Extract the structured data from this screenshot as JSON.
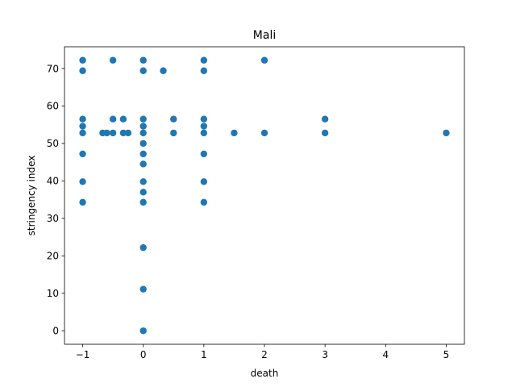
{
  "chart_data": {
    "type": "scatter",
    "title": "Mali",
    "xlabel": "death",
    "ylabel": "stringency index",
    "xlim": [
      -1.3,
      5.3
    ],
    "ylim": [
      -3.6,
      75.8
    ],
    "xticks": [
      -1,
      0,
      1,
      2,
      3,
      4,
      5
    ],
    "xtick_labels": [
      "−1",
      "0",
      "1",
      "2",
      "3",
      "4",
      "5"
    ],
    "yticks": [
      0,
      10,
      20,
      30,
      40,
      50,
      60,
      70
    ],
    "ytick_labels": [
      "0",
      "10",
      "20",
      "30",
      "40",
      "50",
      "60",
      "70"
    ],
    "grid": false,
    "legend": "none",
    "marker_color": "#1f77b4",
    "series": [
      {
        "points": [
          {
            "x": -1,
            "y": 72.2
          },
          {
            "x": -1,
            "y": 69.4
          },
          {
            "x": -1,
            "y": 56.5
          },
          {
            "x": -1,
            "y": 54.6
          },
          {
            "x": -1,
            "y": 52.8
          },
          {
            "x": -1,
            "y": 47.2
          },
          {
            "x": -1,
            "y": 39.8
          },
          {
            "x": -1,
            "y": 34.3
          },
          {
            "x": -0.67,
            "y": 52.8
          },
          {
            "x": -0.6,
            "y": 52.8
          },
          {
            "x": -0.5,
            "y": 72.2
          },
          {
            "x": -0.5,
            "y": 56.5
          },
          {
            "x": -0.5,
            "y": 52.8
          },
          {
            "x": -0.33,
            "y": 56.5
          },
          {
            "x": -0.33,
            "y": 52.8
          },
          {
            "x": -0.25,
            "y": 52.8
          },
          {
            "x": 0,
            "y": 72.2
          },
          {
            "x": 0,
            "y": 69.4
          },
          {
            "x": 0,
            "y": 56.5
          },
          {
            "x": 0,
            "y": 54.6
          },
          {
            "x": 0,
            "y": 52.8
          },
          {
            "x": 0,
            "y": 50.0
          },
          {
            "x": 0,
            "y": 47.2
          },
          {
            "x": 0,
            "y": 44.5
          },
          {
            "x": 0,
            "y": 39.8
          },
          {
            "x": 0,
            "y": 37.0
          },
          {
            "x": 0,
            "y": 34.3
          },
          {
            "x": 0,
            "y": 22.2
          },
          {
            "x": 0,
            "y": 11.1
          },
          {
            "x": 0,
            "y": 0
          },
          {
            "x": 0.33,
            "y": 69.4
          },
          {
            "x": 0.5,
            "y": 56.5
          },
          {
            "x": 0.5,
            "y": 52.8
          },
          {
            "x": 1,
            "y": 72.2
          },
          {
            "x": 1,
            "y": 69.4
          },
          {
            "x": 1,
            "y": 56.5
          },
          {
            "x": 1,
            "y": 54.6
          },
          {
            "x": 1,
            "y": 52.8
          },
          {
            "x": 1,
            "y": 47.2
          },
          {
            "x": 1,
            "y": 39.8
          },
          {
            "x": 1,
            "y": 34.3
          },
          {
            "x": 1.5,
            "y": 52.8
          },
          {
            "x": 2,
            "y": 72.2
          },
          {
            "x": 2,
            "y": 52.8
          },
          {
            "x": 3,
            "y": 56.5
          },
          {
            "x": 3,
            "y": 52.8
          },
          {
            "x": 5,
            "y": 52.8
          }
        ]
      }
    ]
  }
}
